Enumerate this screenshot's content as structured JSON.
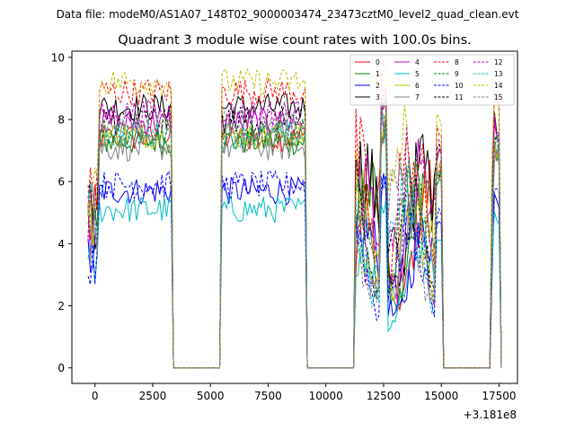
{
  "chart_data": {
    "type": "line",
    "suptitle": "Data file: modeM0/AS1A07_148T02_9000003474_23473cztM0_level2_quad_clean.evt",
    "title": "Quadrant 3 module wise count rates with 100.0s bins.",
    "xlabel": "",
    "ylabel": "",
    "x_offset_label": "+3.181e8",
    "xlim": [
      -1000,
      18300
    ],
    "ylim": [
      -0.5,
      10.2
    ],
    "xticks": [
      0,
      2500,
      5000,
      7500,
      10000,
      12500,
      15000,
      17500
    ],
    "xtick_labels": [
      "0",
      "2500",
      "5000",
      "7500",
      "10000",
      "12500",
      "15000",
      "17500"
    ],
    "yticks": [
      0,
      2,
      4,
      6,
      8,
      10
    ],
    "ytick_labels": [
      "0",
      "2",
      "4",
      "6",
      "8",
      "10"
    ],
    "legend_position": "top-right",
    "segments": [
      {
        "start": -300,
        "end": 3300,
        "lead_in": true
      },
      {
        "start": 5500,
        "end": 9100
      },
      {
        "start": 11300,
        "end": 15000,
        "wild": true
      },
      {
        "start": 17200,
        "end": 17500,
        "wild": true
      }
    ],
    "series": [
      {
        "name": "0",
        "color": "#ff0000",
        "dashed": false,
        "level": 7.4
      },
      {
        "name": "1",
        "color": "#008000",
        "dashed": false,
        "level": 7.3
      },
      {
        "name": "2",
        "color": "#0000ff",
        "dashed": false,
        "level": 5.7
      },
      {
        "name": "3",
        "color": "#000000",
        "dashed": false,
        "level": 8.4
      },
      {
        "name": "4",
        "color": "#bf00bf",
        "dashed": false,
        "level": 7.9
      },
      {
        "name": "5",
        "color": "#00bfbf",
        "dashed": false,
        "level": 5.1
      },
      {
        "name": "6",
        "color": "#bfbf00",
        "dashed": false,
        "level": 7.5
      },
      {
        "name": "7",
        "color": "#808080",
        "dashed": false,
        "level": 7.1
      },
      {
        "name": "8",
        "color": "#ff0000",
        "dashed": true,
        "level": 8.9
      },
      {
        "name": "9",
        "color": "#008000",
        "dashed": true,
        "level": 7.6
      },
      {
        "name": "10",
        "color": "#0000ff",
        "dashed": true,
        "level": 5.9
      },
      {
        "name": "11",
        "color": "#000000",
        "dashed": true,
        "level": 8.0
      },
      {
        "name": "12",
        "color": "#bf00bf",
        "dashed": true,
        "level": 8.2
      },
      {
        "name": "13",
        "color": "#00bfbf",
        "dashed": true,
        "level": 7.5
      },
      {
        "name": "14",
        "color": "#bfbf00",
        "dashed": true,
        "level": 9.2
      },
      {
        "name": "15",
        "color": "#808080",
        "dashed": true,
        "level": 7.8
      }
    ]
  }
}
